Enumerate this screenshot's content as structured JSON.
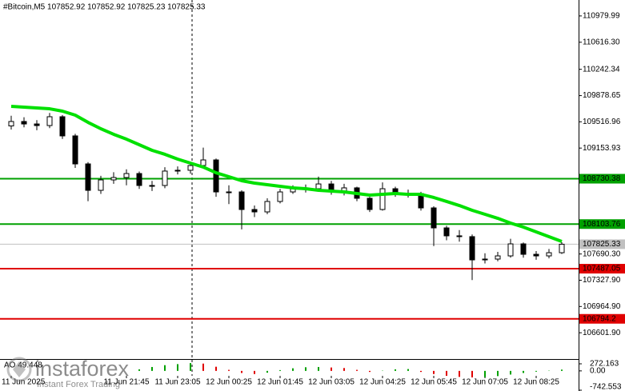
{
  "chart_data": [
    {
      "type": "candlestick",
      "title": "#Bitcoin,M5  107852.92 107852.92 107825.23 107825.33",
      "categories": [
        "11 Jun 2025",
        null,
        null,
        null,
        null,
        null,
        null,
        null,
        null,
        "11 Jun 21:45",
        null,
        null,
        null,
        "11 Jun 23:05",
        null,
        null,
        null,
        "12 Jun 00:25",
        null,
        null,
        null,
        "12 Jun 01:45",
        null,
        null,
        null,
        "12 Jun 03:05",
        null,
        null,
        null,
        "12 Jun 04:25",
        null,
        null,
        null,
        "12 Jun 05:45",
        null,
        null,
        null,
        "12 Jun 07:05",
        null,
        null,
        null,
        "12 Jun 08:25",
        null,
        null
      ],
      "open": [
        109460,
        109521,
        109487,
        109465,
        109587,
        109322,
        108935,
        108570,
        108714,
        108747,
        108802,
        108637,
        108637,
        108836,
        108847,
        108913,
        108990,
        108548,
        108548,
        108305,
        108272,
        108416,
        108548,
        108592,
        108592,
        108658,
        108548,
        108604,
        108460,
        108305,
        108592,
        108526,
        108526,
        108327,
        108051,
        107941,
        107930,
        107609,
        107620,
        107664,
        107830,
        107686,
        107664,
        107708
      ],
      "high": [
        109600,
        109580,
        109540,
        109640,
        109610,
        109350,
        108960,
        108770,
        108820,
        108860,
        108830,
        108700,
        108890,
        108900,
        108960,
        109160,
        109010,
        108640,
        108570,
        108360,
        108460,
        108590,
        108640,
        108650,
        108760,
        108700,
        108660,
        108620,
        108480,
        108680,
        108620,
        108580,
        108550,
        108350,
        108080,
        108020,
        107960,
        107700,
        107720,
        107900,
        107850,
        107730,
        107760,
        107852.92
      ],
      "low": [
        109410,
        109440,
        109400,
        109430,
        109280,
        108880,
        108420,
        108520,
        108660,
        108640,
        108590,
        108560,
        108600,
        108790,
        108800,
        108880,
        108480,
        108380,
        108030,
        108200,
        108240,
        108390,
        108520,
        108540,
        108560,
        108510,
        108500,
        108420,
        108270,
        108290,
        108480,
        108470,
        108290,
        107800,
        107880,
        107860,
        107330,
        107560,
        107590,
        107640,
        107640,
        107610,
        107630,
        107690
      ],
      "close": [
        109521,
        109487,
        109465,
        109587,
        109322,
        108935,
        108570,
        108714,
        108747,
        108802,
        108637,
        108637,
        108836,
        108847,
        108913,
        108990,
        108548,
        108548,
        108305,
        108272,
        108416,
        108548,
        108592,
        108592,
        108658,
        108548,
        108604,
        108460,
        108305,
        108592,
        108526,
        108526,
        108327,
        108051,
        107941,
        107930,
        107609,
        107620,
        107664,
        107830,
        107686,
        107664,
        107708,
        107825.33
      ],
      "ma_values": [
        109730,
        109719,
        109708,
        109697,
        109664,
        109609,
        109509,
        109421,
        109344,
        109277,
        109200,
        109123,
        109068,
        109001,
        108946,
        108891,
        108813,
        108758,
        108703,
        108670,
        108648,
        108626,
        108604,
        108592,
        108570,
        108559,
        108548,
        108526,
        108504,
        108515,
        108526,
        108515,
        108515,
        108471,
        108416,
        108360,
        108294,
        108239,
        108183,
        108117,
        108062,
        107996,
        107929,
        107863
      ],
      "ma_color": "#00e000",
      "up_color": "#ffffff",
      "down_color": "#000000",
      "candle_stroke": "#000000",
      "levels": [
        {
          "value": 108730.38,
          "color": "#00a000",
          "text_color": "#000000"
        },
        {
          "value": 108103.76,
          "color": "#00a000",
          "text_color": "#000000"
        },
        {
          "value": 107487.05,
          "color": "#e00000",
          "text_color": "#ffffff"
        },
        {
          "value": 106794.2,
          "color": "#e00000",
          "text_color": "#ffffff"
        }
      ],
      "last_price_color": "#c0c0c0",
      "ylim": [
        106250,
        111200
      ],
      "yticks": [
        110979.99,
        {
          "value": 110616.3,
          "label": "110616.30"
        },
        110242.34,
        109878.65,
        109516.96,
        109153.93,
        {
          "value": 107690.3,
          "label": "107690.30"
        },
        {
          "value": 107327.9,
          "label": "107327.90"
        },
        {
          "value": 106964.9,
          "label": "106964.90"
        },
        {
          "value": 106601.9,
          "label": "106601.90"
        }
      ]
    },
    {
      "type": "bar",
      "title": "AO 49.448",
      "values": [
        null,
        null,
        null,
        null,
        null,
        null,
        null,
        null,
        null,
        null,
        60,
        150,
        220,
        260,
        300,
        280,
        160,
        40,
        -80,
        -120,
        -70,
        30,
        100,
        140,
        150,
        130,
        110,
        40,
        -40,
        10,
        60,
        70,
        -40,
        -120,
        -190,
        -230,
        -250,
        -240,
        -200,
        -140,
        -80,
        -30,
        10,
        49.448
      ],
      "up_color": "#00a000",
      "down_color": "#e00000",
      "ylim": [
        -773,
        426
      ],
      "yticks": [
        272.163,
        {
          "value": 0,
          "label": "0.00"
        },
        -742.553
      ]
    }
  ],
  "watermark": {
    "brand": "instaforex",
    "tagline": "Instant Forex Trading"
  }
}
